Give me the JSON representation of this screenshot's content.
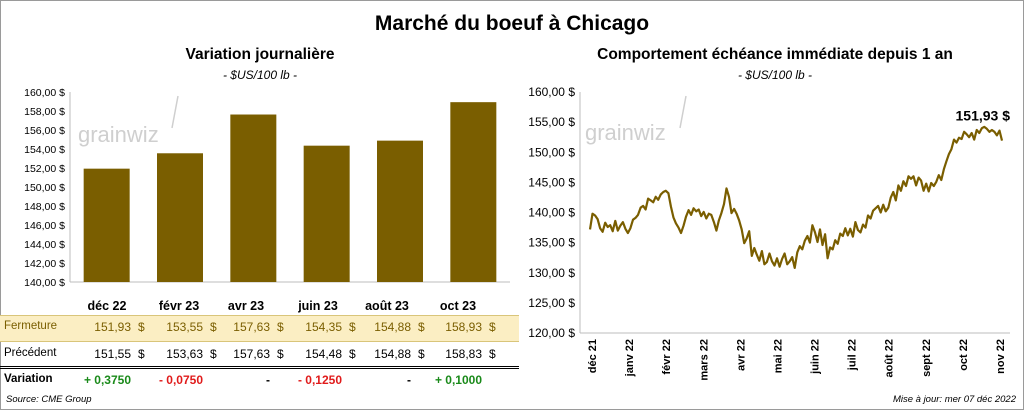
{
  "title": "Marché du boeuf à Chicago",
  "colors": {
    "bar": "#7a5e00",
    "line": "#7a5e00",
    "highlight_row": "#fbeec3",
    "positive": "#1a8a1a",
    "negative": "#e01b1b"
  },
  "chart_data": [
    {
      "type": "bar",
      "title": "Variation  journalière",
      "subtitle": "- $US/100 lb -",
      "categories": [
        "déc 22",
        "févr 23",
        "avr 23",
        "juin 23",
        "août 23",
        "oct 23"
      ],
      "values": [
        151.93,
        153.55,
        157.63,
        154.35,
        154.88,
        158.93
      ],
      "ylim": [
        140,
        160
      ],
      "yticks": [
        "140,00 $",
        "142,00 $",
        "144,00 $",
        "146,00 $",
        "148,00 $",
        "150,00 $",
        "152,00 $",
        "154,00 $",
        "156,00 $",
        "158,00 $",
        "160,00 $"
      ],
      "watermark": "grainwiz"
    },
    {
      "type": "line",
      "title": "Comportement  échéance immédiate depuis 1 an",
      "subtitle": "- $US/100 lb -",
      "ylim": [
        120,
        160
      ],
      "yticks": [
        "120,00 $",
        "125,00 $",
        "130,00 $",
        "135,00 $",
        "140,00 $",
        "145,00 $",
        "150,00 $",
        "155,00 $",
        "160,00 $"
      ],
      "xticks": [
        "déc 21",
        "janv 22",
        "févr 22",
        "mars 22",
        "avr 22",
        "mai 22",
        "juin 22",
        "juil 22",
        "août 22",
        "sept 22",
        "oct 22",
        "nov 22"
      ],
      "last_label": "151,93 $",
      "watermark": "grainwiz",
      "points": [
        [
          0,
          137.2
        ],
        [
          1,
          139.8
        ],
        [
          2,
          139.5
        ],
        [
          3,
          138.9
        ],
        [
          4,
          137.4
        ],
        [
          5,
          136.8
        ],
        [
          6,
          138.3
        ],
        [
          7,
          137.6
        ],
        [
          8,
          137.9
        ],
        [
          9,
          136.9
        ],
        [
          10,
          138.6
        ],
        [
          11,
          137.0
        ],
        [
          12,
          137.8
        ],
        [
          13,
          138.4
        ],
        [
          14,
          137.3
        ],
        [
          15,
          136.6
        ],
        [
          16,
          137.4
        ],
        [
          17,
          138.8
        ],
        [
          18,
          139.1
        ],
        [
          19,
          139.6
        ],
        [
          20,
          140.8
        ],
        [
          21,
          141.1
        ],
        [
          22,
          140.5
        ],
        [
          23,
          142.3
        ],
        [
          24,
          142.0
        ],
        [
          25,
          141.7
        ],
        [
          26,
          142.6
        ],
        [
          27,
          142.1
        ],
        [
          28,
          143.0
        ],
        [
          29,
          143.4
        ],
        [
          30,
          143.6
        ],
        [
          31,
          143.2
        ],
        [
          32,
          141.0
        ],
        [
          33,
          139.2
        ],
        [
          34,
          138.2
        ],
        [
          35,
          137.5
        ],
        [
          36,
          136.6
        ],
        [
          37,
          137.8
        ],
        [
          38,
          139.3
        ],
        [
          39,
          140.4
        ],
        [
          40,
          139.6
        ],
        [
          41,
          140.7
        ],
        [
          42,
          140.2
        ],
        [
          43,
          140.5
        ],
        [
          44,
          139.4
        ],
        [
          45,
          140.1
        ],
        [
          46,
          139.0
        ],
        [
          47,
          139.8
        ],
        [
          48,
          139.6
        ],
        [
          49,
          138.4
        ],
        [
          50,
          137.0
        ],
        [
          51,
          138.7
        ],
        [
          52,
          139.9
        ],
        [
          53,
          141.4
        ],
        [
          54,
          144.0
        ],
        [
          55,
          142.6
        ],
        [
          56,
          139.9
        ],
        [
          57,
          140.6
        ],
        [
          58,
          139.8
        ],
        [
          59,
          138.7
        ],
        [
          60,
          137.2
        ],
        [
          61,
          134.9
        ],
        [
          62,
          135.7
        ],
        [
          63,
          136.9
        ],
        [
          64,
          132.8
        ],
        [
          65,
          134.1
        ],
        [
          66,
          133.0
        ],
        [
          67,
          132.0
        ],
        [
          68,
          133.6
        ],
        [
          69,
          131.4
        ],
        [
          70,
          131.8
        ],
        [
          71,
          133.2
        ],
        [
          72,
          131.9
        ],
        [
          73,
          131.2
        ],
        [
          74,
          132.4
        ],
        [
          75,
          131.0
        ],
        [
          76,
          132.3
        ],
        [
          77,
          133.2
        ],
        [
          78,
          131.4
        ],
        [
          79,
          131.9
        ],
        [
          80,
          132.6
        ],
        [
          81,
          130.8
        ],
        [
          82,
          133.4
        ],
        [
          83,
          134.4
        ],
        [
          84,
          133.9
        ],
        [
          85,
          135.3
        ],
        [
          86,
          136.1
        ],
        [
          87,
          135.0
        ],
        [
          88,
          137.9
        ],
        [
          89,
          136.7
        ],
        [
          90,
          135.1
        ],
        [
          91,
          137.2
        ],
        [
          92,
          134.6
        ],
        [
          93,
          136.4
        ],
        [
          94,
          132.4
        ],
        [
          95,
          134.2
        ],
        [
          96,
          133.9
        ],
        [
          97,
          135.4
        ],
        [
          98,
          134.8
        ],
        [
          99,
          136.5
        ],
        [
          100,
          136.1
        ],
        [
          101,
          137.4
        ],
        [
          102,
          136.2
        ],
        [
          103,
          137.3
        ],
        [
          104,
          136.0
        ],
        [
          105,
          138.4
        ],
        [
          106,
          137.1
        ],
        [
          107,
          136.7
        ],
        [
          108,
          138.0
        ],
        [
          109,
          137.5
        ],
        [
          110,
          139.5
        ],
        [
          111,
          139.0
        ],
        [
          112,
          140.3
        ],
        [
          113,
          140.7
        ],
        [
          114,
          141.1
        ],
        [
          115,
          140.0
        ],
        [
          116,
          141.3
        ],
        [
          117,
          140.2
        ],
        [
          118,
          140.8
        ],
        [
          119,
          142.5
        ],
        [
          120,
          143.4
        ],
        [
          121,
          142.0
        ],
        [
          122,
          144.5
        ],
        [
          123,
          143.6
        ],
        [
          124,
          145.2
        ],
        [
          125,
          144.4
        ],
        [
          126,
          146.0
        ],
        [
          127,
          145.6
        ],
        [
          128,
          146.0
        ],
        [
          129,
          144.5
        ],
        [
          130,
          145.8
        ],
        [
          131,
          145.3
        ],
        [
          132,
          143.6
        ],
        [
          133,
          144.8
        ],
        [
          134,
          143.5
        ],
        [
          135,
          144.9
        ],
        [
          136,
          144.4
        ],
        [
          137,
          145.1
        ],
        [
          138,
          146.2
        ],
        [
          139,
          145.4
        ],
        [
          140,
          147.2
        ],
        [
          141,
          148.5
        ],
        [
          142,
          149.7
        ],
        [
          143,
          150.5
        ],
        [
          144,
          152.1
        ],
        [
          145,
          151.6
        ],
        [
          146,
          152.4
        ],
        [
          147,
          152.2
        ],
        [
          148,
          153.4
        ],
        [
          149,
          153.0
        ],
        [
          150,
          152.5
        ],
        [
          151,
          153.2
        ],
        [
          152,
          152.1
        ],
        [
          153,
          153.7
        ],
        [
          154,
          153.2
        ],
        [
          155,
          154.0
        ],
        [
          156,
          154.2
        ],
        [
          157,
          153.9
        ],
        [
          158,
          153.4
        ],
        [
          159,
          153.7
        ],
        [
          160,
          153.4
        ],
        [
          161,
          152.8
        ],
        [
          162,
          153.6
        ],
        [
          163,
          151.93
        ]
      ]
    }
  ],
  "table": {
    "columns": [
      "déc 22",
      "févr 23",
      "avr 23",
      "juin 23",
      "août 23",
      "oct 23"
    ],
    "rows": [
      {
        "label": "Fermeture",
        "values": [
          "151,93",
          "153,55",
          "157,63",
          "154,35",
          "154,88",
          "158,93"
        ],
        "unit": "$"
      },
      {
        "label": "Précédent",
        "values": [
          "151,55",
          "153,63",
          "157,63",
          "154,48",
          "154,88",
          "158,83"
        ],
        "unit": "$"
      },
      {
        "label": "Variation",
        "values": [
          "+ 0,3750",
          "- 0,0750",
          "-",
          "- 0,1250",
          "-",
          "+ 0,1000"
        ],
        "signs": [
          "pos",
          "neg",
          "none",
          "neg",
          "none",
          "pos"
        ]
      }
    ]
  },
  "footer": {
    "source": "Source: CME Group",
    "updated": "Mise à jour: mer 07 déc 2022"
  }
}
